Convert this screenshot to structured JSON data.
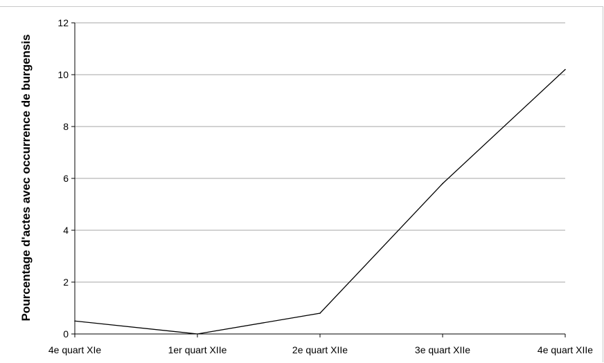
{
  "chart_data": {
    "type": "line",
    "categories": [
      "4e quart XIe",
      "1er quart XIIe",
      "2e quart XIIe",
      "3e quart XIIe",
      "4e quart XIIe"
    ],
    "series": [
      {
        "values": [
          0.5,
          0.0,
          0.8,
          5.8,
          10.2
        ]
      }
    ],
    "ylabel": "Pourcentage d'actes  avec occurrence de burgensis",
    "xlabel": "",
    "title": "",
    "ylim": [
      0,
      12
    ],
    "yticks": [
      0,
      2,
      4,
      6,
      8,
      10,
      12
    ],
    "grid": true,
    "legend": "none",
    "colors": {
      "line": "#000000",
      "grid": "#a6a6a6",
      "axis": "#000000"
    }
  }
}
